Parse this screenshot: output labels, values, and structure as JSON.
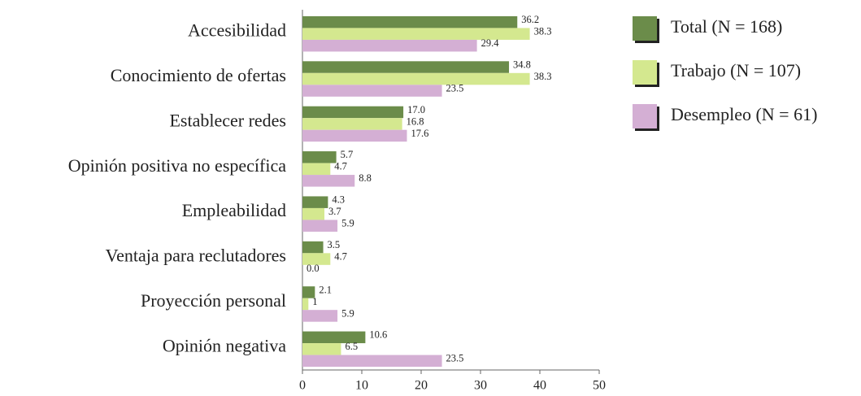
{
  "chart_data": {
    "type": "bar",
    "orientation": "horizontal",
    "categories": [
      "Accesibilidad",
      "Conocimiento de ofertas",
      "Establecer redes",
      "Opinión positiva no específica",
      "Empleabilidad",
      "Ventaja para reclutadores",
      "Proyección personal",
      "Opinión negativa"
    ],
    "series": [
      {
        "name": "Total (N = 168)",
        "color": "#6b8c4a",
        "values": [
          36.2,
          34.8,
          17.0,
          5.7,
          4.3,
          3.5,
          2.1,
          10.6
        ],
        "value_labels": [
          "36.2",
          "34.8",
          "17.0",
          "5.7",
          "4.3",
          "3.5",
          "2.1",
          "10.6"
        ]
      },
      {
        "name": "Trabajo (N = 107)",
        "color": "#d4e88f",
        "values": [
          38.3,
          38.3,
          16.8,
          4.7,
          3.7,
          4.7,
          1,
          6.5
        ],
        "value_labels": [
          "38.3",
          "38.3",
          "16.8",
          "4.7",
          "3.7",
          "4.7",
          "1",
          "6.5"
        ]
      },
      {
        "name": "Desempleo (N = 61)",
        "color": "#d4afd4",
        "values": [
          29.4,
          23.5,
          17.6,
          8.8,
          5.9,
          0.0,
          5.9,
          23.5
        ],
        "value_labels": [
          "29.4",
          "23.5",
          "17.6",
          "8.8",
          "5.9",
          "0.0",
          "5.9",
          "23.5"
        ]
      }
    ],
    "xlim": [
      0,
      50
    ],
    "xticks": [
      0,
      10,
      20,
      30,
      40,
      50
    ],
    "legend": "top-right"
  }
}
